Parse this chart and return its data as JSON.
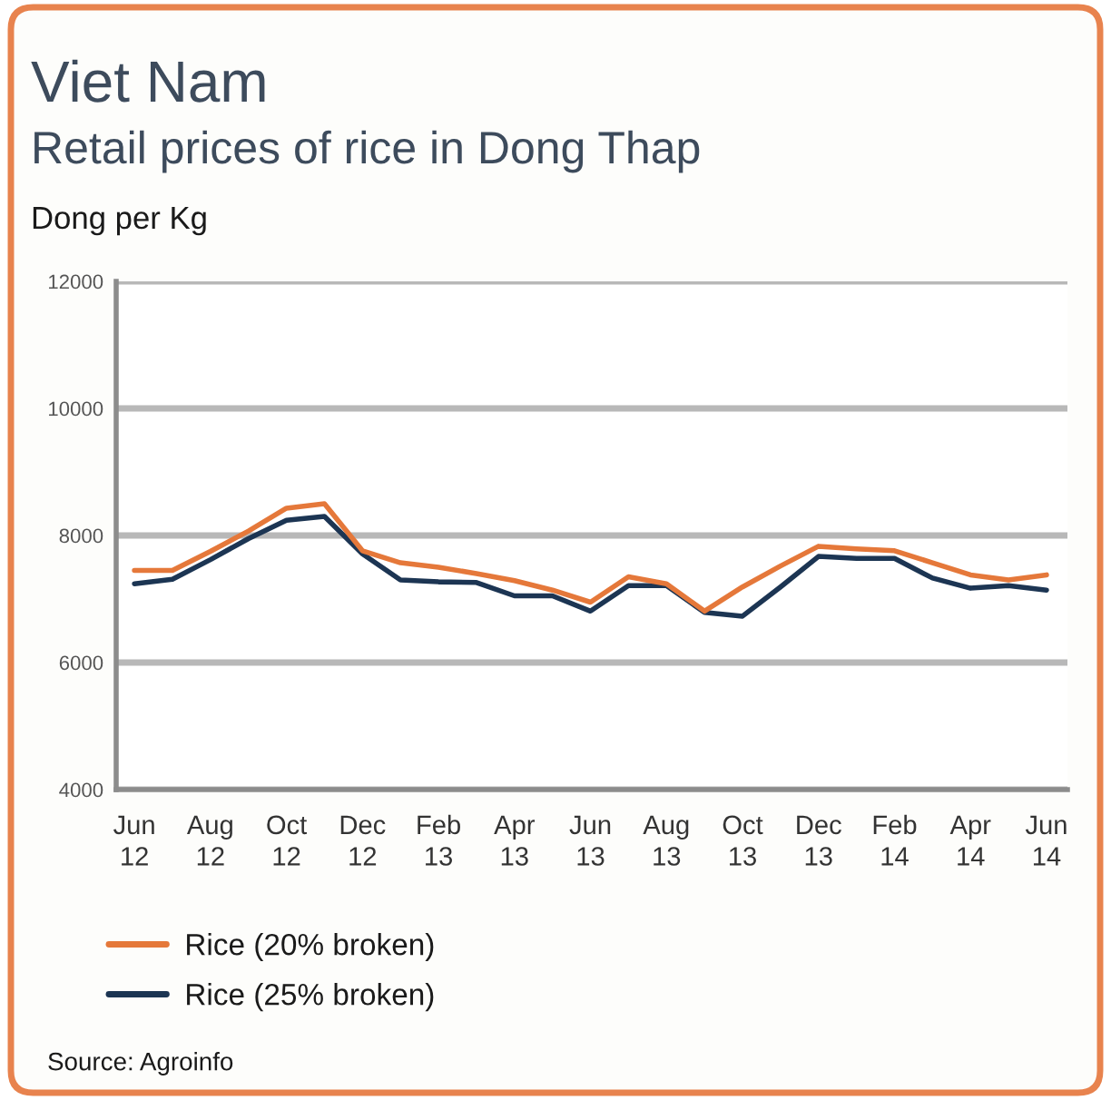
{
  "chart_data": {
    "type": "line",
    "title": "Viet Nam",
    "subtitle": "Retail prices of rice in Dong Thap",
    "ylabel": "Dong per Kg",
    "categories": [
      "Jun\n12",
      null,
      "Aug\n12",
      null,
      "Oct\n12",
      null,
      "Dec\n12",
      null,
      "Feb\n13",
      null,
      "Apr\n13",
      null,
      "Jun\n13",
      null,
      "Aug\n13",
      null,
      "Oct\n13",
      null,
      "Dec\n13",
      null,
      "Feb\n14",
      null,
      "Apr\n14",
      null,
      "Jun\n14"
    ],
    "series": [
      {
        "name": "Rice (20% broken)",
        "color": "#e5783a",
        "values": [
          7450,
          7450,
          7750,
          8070,
          8430,
          8500,
          7760,
          7570,
          7500,
          7400,
          7290,
          7140,
          6950,
          7350,
          7240,
          6810,
          7190,
          7520,
          7830,
          7790,
          7760,
          7570,
          7380,
          7300,
          7380
        ]
      },
      {
        "name": "Rice (25% broken)",
        "color": "#1c3553",
        "values": [
          7240,
          7310,
          7620,
          7950,
          8240,
          8300,
          7710,
          7300,
          7270,
          7260,
          7050,
          7050,
          6810,
          7210,
          7210,
          6790,
          6730,
          7190,
          7670,
          7640,
          7640,
          7330,
          7170,
          7210,
          7140
        ]
      }
    ],
    "ylim": [
      4000,
      12000
    ],
    "yticks": [
      4000,
      6000,
      8000,
      10000,
      12000
    ],
    "grid": "y",
    "legend": "bottom",
    "annotations": [
      "Source: Agroinfo"
    ]
  }
}
